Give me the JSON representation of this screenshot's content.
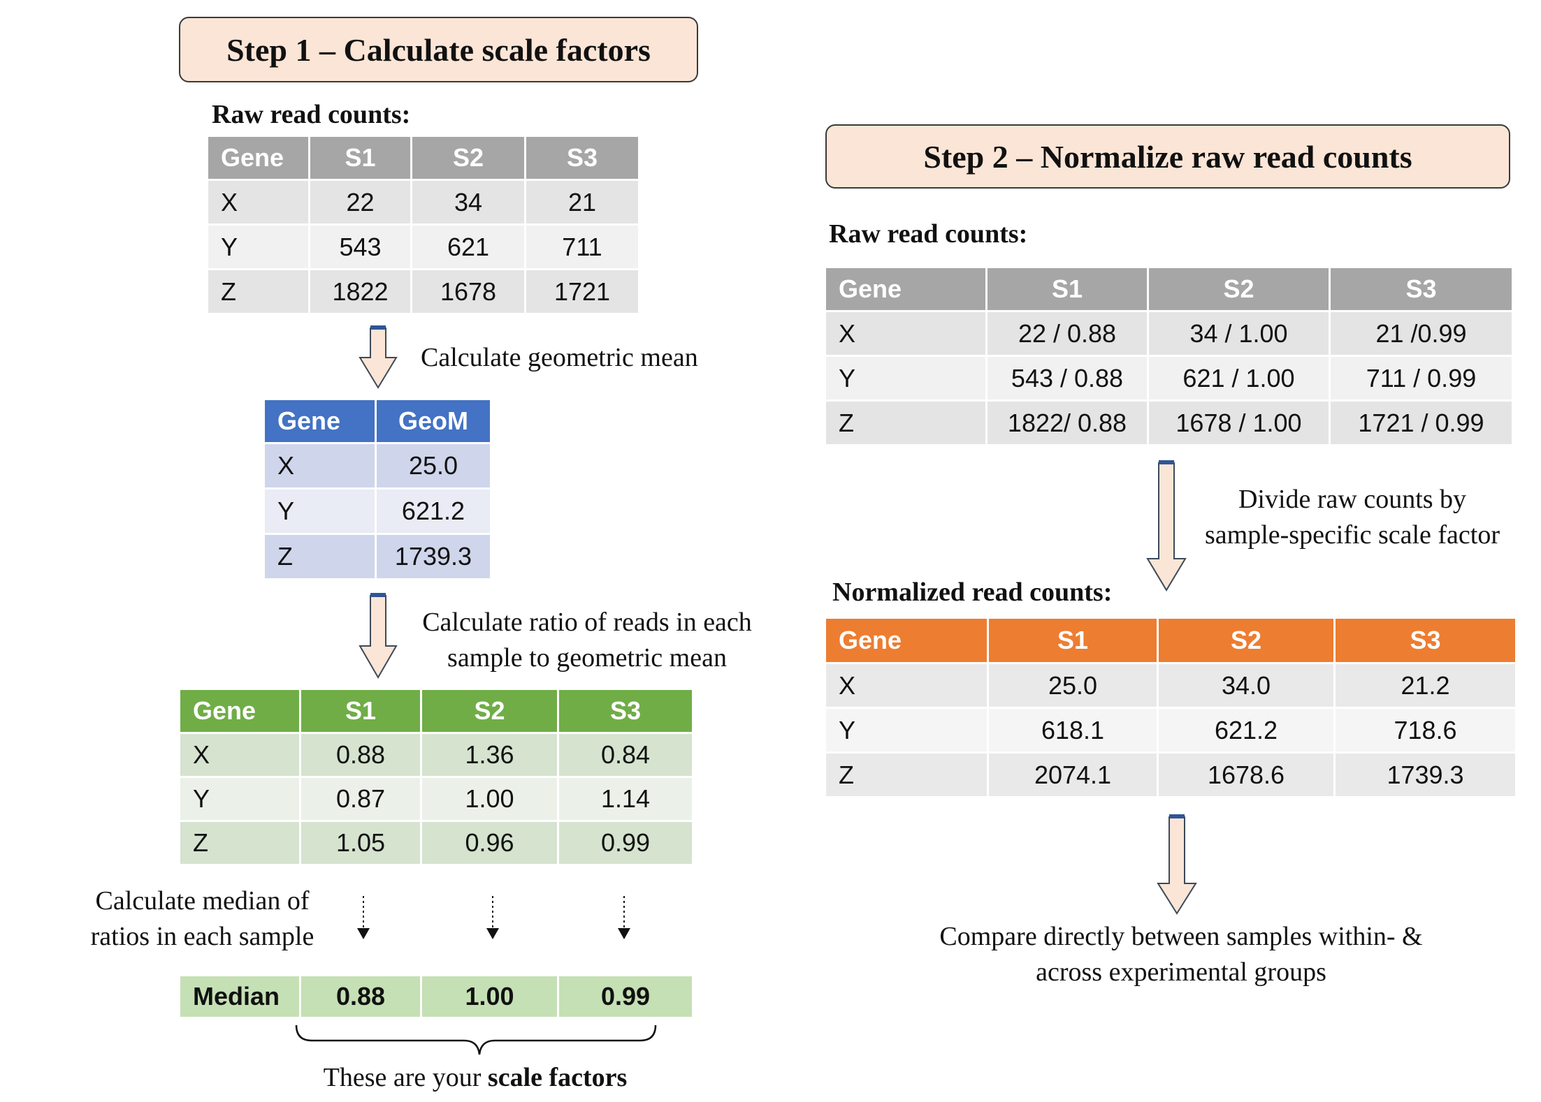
{
  "step1": {
    "title": "Step 1 – Calculate scale factors",
    "raw_label": "Raw read counts:",
    "raw_table": {
      "headers": [
        "Gene",
        "S1",
        "S2",
        "S3"
      ],
      "rows": [
        [
          "X",
          "22",
          "34",
          "21"
        ],
        [
          "Y",
          "543",
          "621",
          "711"
        ],
        [
          "Z",
          "1822",
          "1678",
          "1721"
        ]
      ]
    },
    "geo_note": "Calculate geometric mean",
    "geo_table": {
      "headers": [
        "Gene",
        "GeoM"
      ],
      "rows": [
        [
          "X",
          "25.0"
        ],
        [
          "Y",
          "621.2"
        ],
        [
          "Z",
          "1739.3"
        ]
      ]
    },
    "ratio_note": [
      "Calculate ratio of  reads in each",
      "sample to geometric mean"
    ],
    "ratio_table": {
      "headers": [
        "Gene",
        "S1",
        "S2",
        "S3"
      ],
      "rows": [
        [
          "X",
          "0.88",
          "1.36",
          "0.84"
        ],
        [
          "Y",
          "0.87",
          "1.00",
          "1.14"
        ],
        [
          "Z",
          "1.05",
          "0.96",
          "0.99"
        ]
      ]
    },
    "median_note": [
      "Calculate median of",
      "ratios in each sample"
    ],
    "median_row": [
      "Median",
      "0.88",
      "1.00",
      "0.99"
    ],
    "scale_note_prefix": "These are your ",
    "scale_note_bold": "scale factors"
  },
  "step2": {
    "title": "Step 2 – Normalize raw read counts",
    "raw_label": "Raw read counts:",
    "raw_table": {
      "headers": [
        "Gene",
        "S1",
        "S2",
        "S3"
      ],
      "rows": [
        [
          "X",
          "22 / 0.88",
          "34 / 1.00",
          "21 /0.99"
        ],
        [
          "Y",
          "543 / 0.88",
          "621 / 1.00",
          "711 / 0.99"
        ],
        [
          "Z",
          "1822/ 0.88",
          "1678 / 1.00",
          "1721 / 0.99"
        ]
      ]
    },
    "divide_note": [
      "Divide raw counts by",
      "sample-specific scale factor"
    ],
    "norm_label": "Normalized read counts:",
    "norm_table": {
      "headers": [
        "Gene",
        "S1",
        "S2",
        "S3"
      ],
      "rows": [
        [
          "X",
          "25.0",
          "34.0",
          "21.2"
        ],
        [
          "Y",
          "618.1",
          "621.2",
          "718.6"
        ],
        [
          "Z",
          "2074.1",
          "1678.6",
          "1739.3"
        ]
      ]
    },
    "compare_note": [
      "Compare directly between samples within- &",
      "across experimental groups"
    ]
  },
  "colors": {
    "step_box_fill": "#fbe5d6",
    "arrow_fill": "#fbe5d6",
    "arrow_cap": "#2f5597",
    "gray_header": "#a6a6a6",
    "blue_header": "#4472c4",
    "green_header": "#70ad47",
    "orange_header": "#ed7d31",
    "median_fill": "#c5e0b4"
  }
}
